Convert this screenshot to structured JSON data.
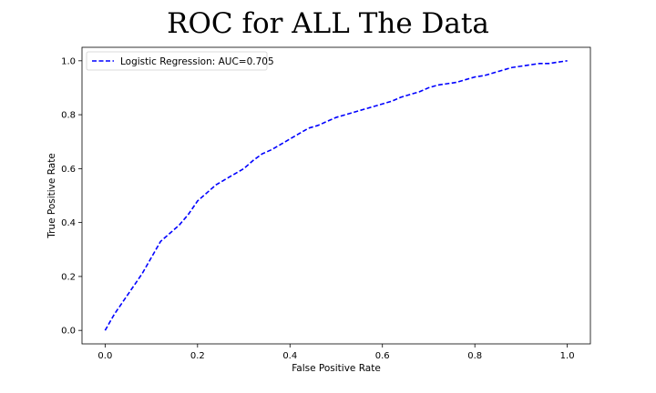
{
  "chart_data": {
    "type": "line",
    "title": "ROC for ALL The Data",
    "xlabel": "False Positive Rate",
    "ylabel": "True Positive Rate",
    "xlim": [
      -0.05,
      1.05
    ],
    "ylim": [
      -0.05,
      1.05
    ],
    "xticks": [
      0.0,
      0.2,
      0.4,
      0.6,
      0.8,
      1.0
    ],
    "yticks": [
      0.0,
      0.2,
      0.4,
      0.6,
      0.8,
      1.0
    ],
    "xtick_labels": [
      "0.0",
      "0.2",
      "0.4",
      "0.6",
      "0.8",
      "1.0"
    ],
    "ytick_labels": [
      "0.0",
      "0.2",
      "0.4",
      "0.6",
      "0.8",
      "1.0"
    ],
    "grid": false,
    "legend_position": "top-left",
    "series": [
      {
        "name": "Logistic Regression: AUC=0.705",
        "color": "#0000ff",
        "line_style": "dashed",
        "x": [
          0.0,
          0.01,
          0.02,
          0.04,
          0.06,
          0.08,
          0.1,
          0.12,
          0.14,
          0.16,
          0.18,
          0.2,
          0.22,
          0.24,
          0.26,
          0.28,
          0.3,
          0.32,
          0.34,
          0.36,
          0.38,
          0.4,
          0.42,
          0.44,
          0.46,
          0.48,
          0.5,
          0.52,
          0.54,
          0.56,
          0.58,
          0.6,
          0.62,
          0.64,
          0.66,
          0.68,
          0.7,
          0.72,
          0.74,
          0.76,
          0.78,
          0.8,
          0.82,
          0.84,
          0.86,
          0.88,
          0.9,
          0.92,
          0.94,
          0.96,
          0.98,
          1.0
        ],
        "y": [
          0.0,
          0.03,
          0.06,
          0.11,
          0.16,
          0.21,
          0.27,
          0.33,
          0.36,
          0.39,
          0.43,
          0.48,
          0.51,
          0.54,
          0.56,
          0.58,
          0.6,
          0.63,
          0.655,
          0.67,
          0.69,
          0.71,
          0.73,
          0.75,
          0.76,
          0.775,
          0.79,
          0.8,
          0.81,
          0.82,
          0.83,
          0.84,
          0.85,
          0.865,
          0.875,
          0.885,
          0.9,
          0.91,
          0.915,
          0.92,
          0.93,
          0.94,
          0.945,
          0.955,
          0.965,
          0.975,
          0.98,
          0.985,
          0.99,
          0.99,
          0.995,
          1.0
        ]
      }
    ]
  }
}
